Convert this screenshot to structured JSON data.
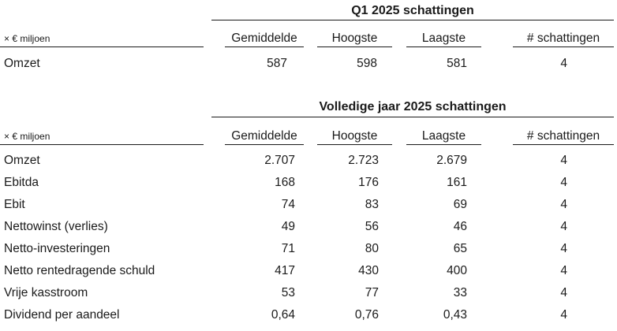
{
  "units_label": "× € miljoen",
  "columns": [
    "Gemiddelde",
    "Hoogste",
    "Laagste",
    "# schattingen"
  ],
  "q1": {
    "title": "Q1 2025 schattingen",
    "rows": [
      {
        "label": "Omzet",
        "values": [
          "587",
          "598",
          "581",
          "4"
        ]
      }
    ]
  },
  "fy": {
    "title": "Volledige jaar 2025 schattingen",
    "rows": [
      {
        "label": "Omzet",
        "values": [
          "2.707",
          "2.723",
          "2.679",
          "4"
        ]
      },
      {
        "label": "Ebitda",
        "values": [
          "168",
          "176",
          "161",
          "4"
        ]
      },
      {
        "label": "Ebit",
        "values": [
          "74",
          "83",
          "69",
          "4"
        ]
      },
      {
        "label": "Nettowinst (verlies)",
        "values": [
          "49",
          "56",
          "46",
          "4"
        ]
      },
      {
        "label": "Netto-investeringen",
        "values": [
          "71",
          "80",
          "65",
          "4"
        ]
      },
      {
        "label": "Netto rentedragende schuld",
        "values": [
          "417",
          "430",
          "400",
          "4"
        ]
      },
      {
        "label": "Vrije kasstroom",
        "values": [
          "53",
          "77",
          "33",
          "4"
        ]
      },
      {
        "label": "Dividend per aandeel",
        "values": [
          "0,64",
          "0,76",
          "0,43",
          "4"
        ]
      }
    ]
  }
}
